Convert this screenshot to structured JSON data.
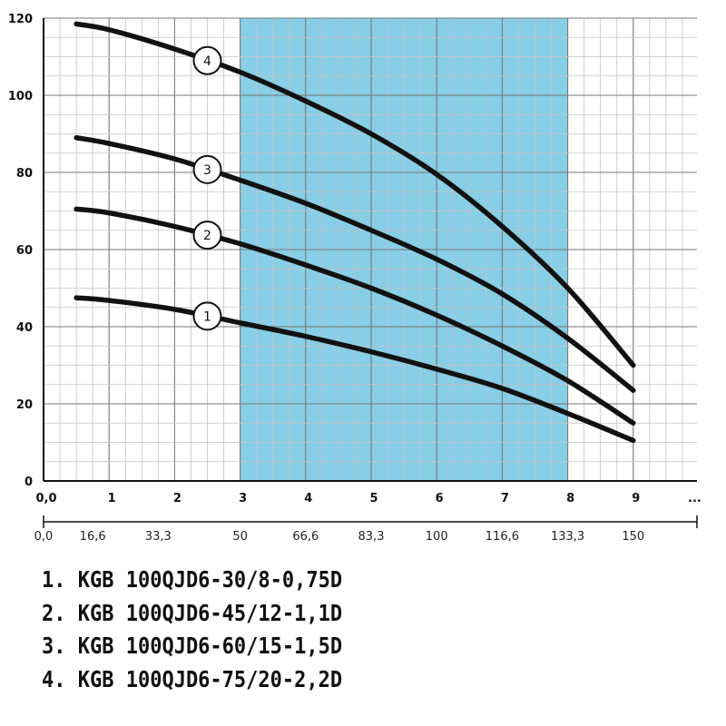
{
  "chart_data": {
    "type": "line",
    "x_axis": {
      "ticks": [
        0,
        1,
        2,
        3,
        4,
        5,
        6,
        7,
        8,
        9
      ],
      "tick_labels": [
        "0,0",
        "1",
        "2",
        "3",
        "4",
        "5",
        "6",
        "7",
        "8",
        "9"
      ],
      "range": [
        0,
        10
      ],
      "unit_label": "...",
      "secondary_ticks": [
        0,
        0.75,
        1.75,
        3,
        4,
        5,
        6,
        7,
        8,
        9
      ],
      "secondary_tick_labels": [
        "0,0",
        "16,6",
        "33,3",
        "50",
        "66,6",
        "83,3",
        "100",
        "116,6",
        "133,3",
        "150"
      ]
    },
    "y_axis": {
      "ticks": [
        0,
        20,
        40,
        60,
        80,
        100,
        120
      ],
      "tick_labels": [
        "0",
        "20",
        "40",
        "60",
        "80",
        "100",
        "120"
      ],
      "range": [
        0,
        120
      ]
    },
    "grid": true,
    "highlight_band": {
      "x_from": 3,
      "x_to": 8,
      "color": "#87CEE6"
    },
    "series": [
      {
        "name": "1",
        "label_at_x": 2.5,
        "x": [
          0.5,
          1,
          2,
          3,
          4,
          5,
          6,
          7,
          8,
          9
        ],
        "y": [
          47.5,
          46.8,
          44.5,
          41,
          37.5,
          33.5,
          29,
          24,
          17.5,
          10.5
        ]
      },
      {
        "name": "2",
        "label_at_x": 2.5,
        "x": [
          0.5,
          1,
          2,
          3,
          4,
          5,
          6,
          7,
          8,
          9
        ],
        "y": [
          70.5,
          69.5,
          66,
          61.5,
          56,
          50,
          43,
          35,
          26,
          15
        ]
      },
      {
        "name": "3",
        "label_at_x": 2.5,
        "x": [
          0.5,
          1,
          2,
          3,
          4,
          5,
          6,
          7,
          8,
          9
        ],
        "y": [
          89,
          87.5,
          83.5,
          78,
          72,
          65,
          57.5,
          48.5,
          37,
          23.5
        ]
      },
      {
        "name": "4",
        "label_at_x": 2.5,
        "x": [
          0.5,
          1,
          2,
          3,
          4,
          5,
          6,
          7,
          8,
          9
        ],
        "y": [
          118.5,
          117,
          112,
          106,
          98.5,
          90,
          79.5,
          66,
          50,
          30
        ]
      }
    ]
  },
  "legend": [
    "1. KGB 100QJD6-30/8-0,75D",
    "2. KGB 100QJD6-45/12-1,1D",
    "3. KGB 100QJD6-60/15-1,5D",
    "4. KGB 100QJD6-75/20-2,2D"
  ],
  "colors": {
    "band": "#87CEE6",
    "curve": "#111111",
    "grid_minor": "#c4c4c4",
    "grid_major": "#777777"
  }
}
